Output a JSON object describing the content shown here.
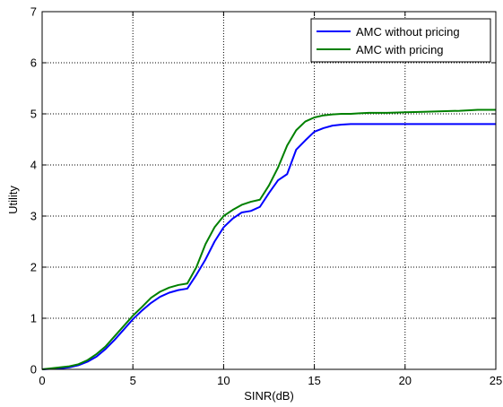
{
  "chart_data": {
    "type": "line",
    "xlabel": "SINR(dB)",
    "ylabel": "Utility",
    "xlim": [
      0,
      25
    ],
    "ylim": [
      0,
      7
    ],
    "xticks": [
      0,
      5,
      10,
      15,
      20,
      25
    ],
    "yticks": [
      0,
      1,
      2,
      3,
      4,
      5,
      6,
      7
    ],
    "grid": true,
    "grid_style": "dotted",
    "legend_position": "top-right",
    "series": [
      {
        "name": "AMC without pricing",
        "color": "#0000ff",
        "x": [
          0,
          0.5,
          1,
          1.5,
          2,
          2.5,
          3,
          3.5,
          4,
          4.5,
          5,
          5.5,
          6,
          6.5,
          7,
          7.5,
          8,
          8.5,
          9,
          9.5,
          10,
          10.5,
          11,
          11.5,
          12,
          12.5,
          13,
          13.5,
          14,
          14.5,
          15,
          15.5,
          16,
          16.5,
          17,
          17.5,
          18,
          19,
          20,
          21,
          22,
          23,
          24,
          25
        ],
        "y": [
          0.0,
          0.01,
          0.02,
          0.04,
          0.08,
          0.15,
          0.25,
          0.4,
          0.58,
          0.78,
          0.98,
          1.15,
          1.3,
          1.42,
          1.5,
          1.55,
          1.58,
          1.85,
          2.15,
          2.5,
          2.78,
          2.95,
          3.07,
          3.1,
          3.18,
          3.45,
          3.7,
          3.82,
          4.3,
          4.48,
          4.65,
          4.72,
          4.77,
          4.79,
          4.8,
          4.8,
          4.8,
          4.8,
          4.8,
          4.8,
          4.8,
          4.8,
          4.8,
          4.8
        ]
      },
      {
        "name": "AMC with pricing",
        "color": "#008000",
        "x": [
          0,
          0.5,
          1,
          1.5,
          2,
          2.5,
          3,
          3.5,
          4,
          4.5,
          5,
          5.5,
          6,
          6.5,
          7,
          7.5,
          8,
          8.5,
          9,
          9.5,
          10,
          10.5,
          11,
          11.5,
          12,
          12.5,
          13,
          13.5,
          14,
          14.5,
          15,
          15.5,
          16,
          16.5,
          17,
          17.5,
          18,
          19,
          20,
          21,
          22,
          23,
          24,
          25
        ],
        "y": [
          0.0,
          0.02,
          0.04,
          0.06,
          0.1,
          0.18,
          0.3,
          0.45,
          0.65,
          0.85,
          1.05,
          1.22,
          1.4,
          1.52,
          1.6,
          1.65,
          1.68,
          2.0,
          2.45,
          2.78,
          3.0,
          3.12,
          3.22,
          3.28,
          3.32,
          3.6,
          3.95,
          4.38,
          4.68,
          4.85,
          4.93,
          4.97,
          4.99,
          5.0,
          5.0,
          5.01,
          5.02,
          5.02,
          5.03,
          5.04,
          5.05,
          5.06,
          5.08,
          5.08
        ]
      }
    ]
  }
}
